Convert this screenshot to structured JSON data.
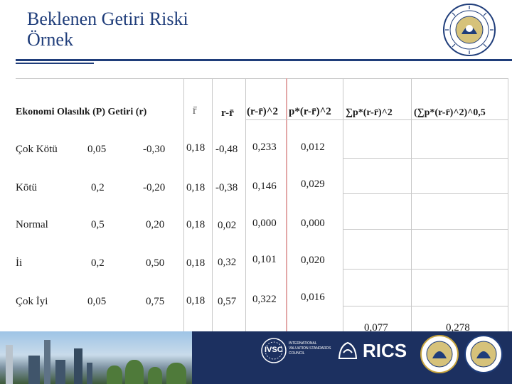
{
  "slide": {
    "title_line1": "Beklenen Getiri Riski",
    "title_line2": "Örnek"
  },
  "table": {
    "headers": {
      "label": "Ekonomi Olasılık (P) Getiri (r)",
      "rbar": "r̄",
      "r_minus_rbar": "r-r̄",
      "sq": "(r-r̄)^2",
      "p_sq": "p*(r-r̄)^2",
      "sum_p_sq": "∑p*(r-r̄)^2",
      "sqrt": "(∑p*(r-r̄)^2)^0,5"
    },
    "rows": [
      {
        "ekonomi": "Çok Kötü",
        "p": "0,05",
        "r": "-0,30",
        "rbar": "0,18",
        "diff": "-0,48",
        "sq": "0,233",
        "psq": "0,012"
      },
      {
        "ekonomi": "Kötü",
        "p": "0,2",
        "r": "-0,20",
        "rbar": "0,18",
        "diff": "-0,38",
        "sq": "0,146",
        "psq": "0,029"
      },
      {
        "ekonomi": "Normal",
        "p": "0,5",
        "r": "0,20",
        "rbar": "0,18",
        "diff": "0,02",
        "sq": "0,000",
        "psq": "0,000"
      },
      {
        "ekonomi": "İi",
        "p": "0,2",
        "r": "0,50",
        "rbar": "0,18",
        "diff": "0,32",
        "sq": "0,101",
        "psq": "0,020"
      },
      {
        "ekonomi": "Çok İyi",
        "p": "0,05",
        "r": "0,75",
        "rbar": "0,18",
        "diff": "0,57",
        "sq": "0,322",
        "psq": "0,016"
      }
    ],
    "totals": {
      "variance": "0,077",
      "std_dev": "0,278"
    }
  },
  "footer": {
    "logo_ivsc": "IVSC",
    "ivsc_caption": "INTERNATIONAL VALUATION STANDARDS COUNCIL",
    "logo_rics": "RICS"
  }
}
